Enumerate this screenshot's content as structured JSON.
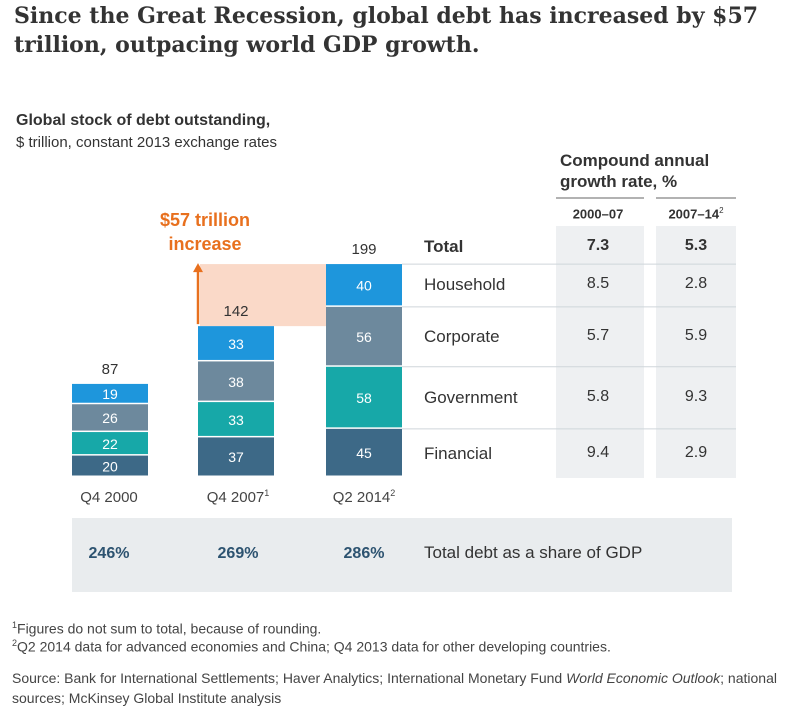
{
  "headline": "Since the Great Recession, global debt has increased by $57 trillion, outpacing world GDP growth.",
  "chart_title": "Global stock of debt outstanding,",
  "chart_subtitle": "$ trillion, constant 2013 exchange rates",
  "increase_label_line1": "$57 trillion",
  "increase_label_line2": "increase",
  "cagr_title_line1": "Compound annual",
  "cagr_title_line2": "growth rate, %",
  "periods": [
    {
      "label": "2000–07",
      "sup": ""
    },
    {
      "label": "2007–14",
      "sup": "2"
    }
  ],
  "gdp_label": "Total debt as a share of GDP",
  "chart_data": {
    "type": "bar",
    "stacked": true,
    "categories": [
      "Q4 2000",
      "Q4 2007",
      "Q2 2014"
    ],
    "category_sups": [
      "",
      "1",
      "2"
    ],
    "series": [
      {
        "name": "Financial",
        "values": [
          20,
          37,
          45
        ],
        "color": "#3d6987"
      },
      {
        "name": "Government",
        "values": [
          22,
          33,
          58
        ],
        "color": "#17a8a8"
      },
      {
        "name": "Corporate",
        "values": [
          26,
          38,
          56
        ],
        "color": "#6d899d"
      },
      {
        "name": "Household",
        "values": [
          19,
          33,
          40
        ],
        "color": "#1e96dc"
      }
    ],
    "totals": [
      87,
      142,
      199
    ],
    "total_label": "Total",
    "cagr": {
      "Total": [
        "7.3",
        "5.3"
      ],
      "Household": [
        "8.5",
        "2.8"
      ],
      "Corporate": [
        "5.7",
        "5.9"
      ],
      "Government": [
        "5.8",
        "9.3"
      ],
      "Financial": [
        "9.4",
        "2.9"
      ]
    },
    "debt_to_gdp": [
      "246%",
      "269%",
      "286%"
    ],
    "increase_highlight_color": "#fad9c8",
    "arrow_color": "#e8701e"
  },
  "footnotes": [
    {
      "sup": "1",
      "text": "Figures do not sum to total, because of rounding."
    },
    {
      "sup": "2",
      "text": "Q2 2014 data for advanced economies and China; Q4 2013 data for other developing countries."
    }
  ],
  "source_prefix": "Source: Bank for International Settlements; Haver Analytics; International Monetary Fund ",
  "source_italic": "World Economic Outlook",
  "source_suffix": "; national sources; McKinsey Global Institute analysis"
}
